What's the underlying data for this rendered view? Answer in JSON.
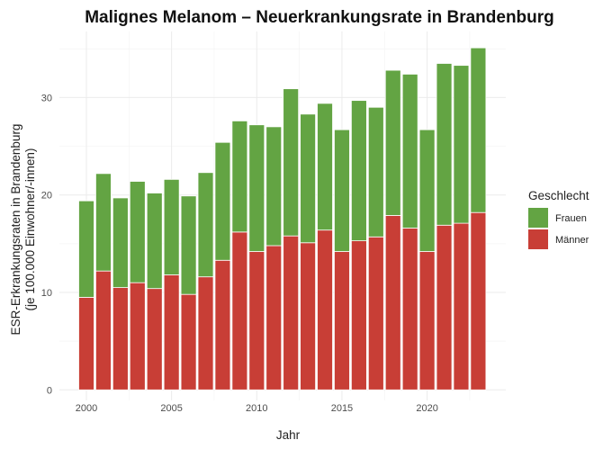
{
  "chart_data": {
    "type": "bar",
    "stacked": true,
    "title": "Malignes Melanom – Neuerkrankungsrate in Brandenburg",
    "xlabel": "Jahr",
    "ylabel_line1": "ESR-Erkrankungsraten in Brandenburg",
    "ylabel_line2": "(je 100.000 Einwohner/-innen)",
    "ylim": [
      0,
      36
    ],
    "yticks": [
      "0",
      "10",
      "20",
      "30"
    ],
    "xticks": [
      "2000",
      "2005",
      "2010",
      "2015",
      "2020"
    ],
    "grid": true,
    "legend": {
      "title": "Geschlecht",
      "position": "right"
    },
    "categories": [
      2000,
      2001,
      2002,
      2003,
      2004,
      2005,
      2006,
      2007,
      2008,
      2009,
      2010,
      2011,
      2012,
      2013,
      2014,
      2015,
      2016,
      2017,
      2018,
      2019,
      2020,
      2021,
      2022,
      2023
    ],
    "series": [
      {
        "name": "Männer",
        "color": "#c83e36",
        "values": [
          9.5,
          12.2,
          10.5,
          11.0,
          10.4,
          11.8,
          9.8,
          11.6,
          13.3,
          16.2,
          14.2,
          14.8,
          15.8,
          15.1,
          16.4,
          14.2,
          15.3,
          15.7,
          17.9,
          16.6,
          14.2,
          16.9,
          17.1,
          18.2
        ]
      },
      {
        "name": "Frauen",
        "color": "#63a443",
        "values": [
          9.9,
          10.0,
          9.2,
          10.4,
          9.8,
          9.8,
          10.1,
          10.7,
          12.1,
          11.4,
          13.0,
          12.2,
          15.1,
          13.2,
          13.0,
          12.5,
          14.4,
          13.3,
          14.9,
          15.8,
          12.5,
          16.6,
          16.2,
          16.9
        ]
      }
    ]
  }
}
